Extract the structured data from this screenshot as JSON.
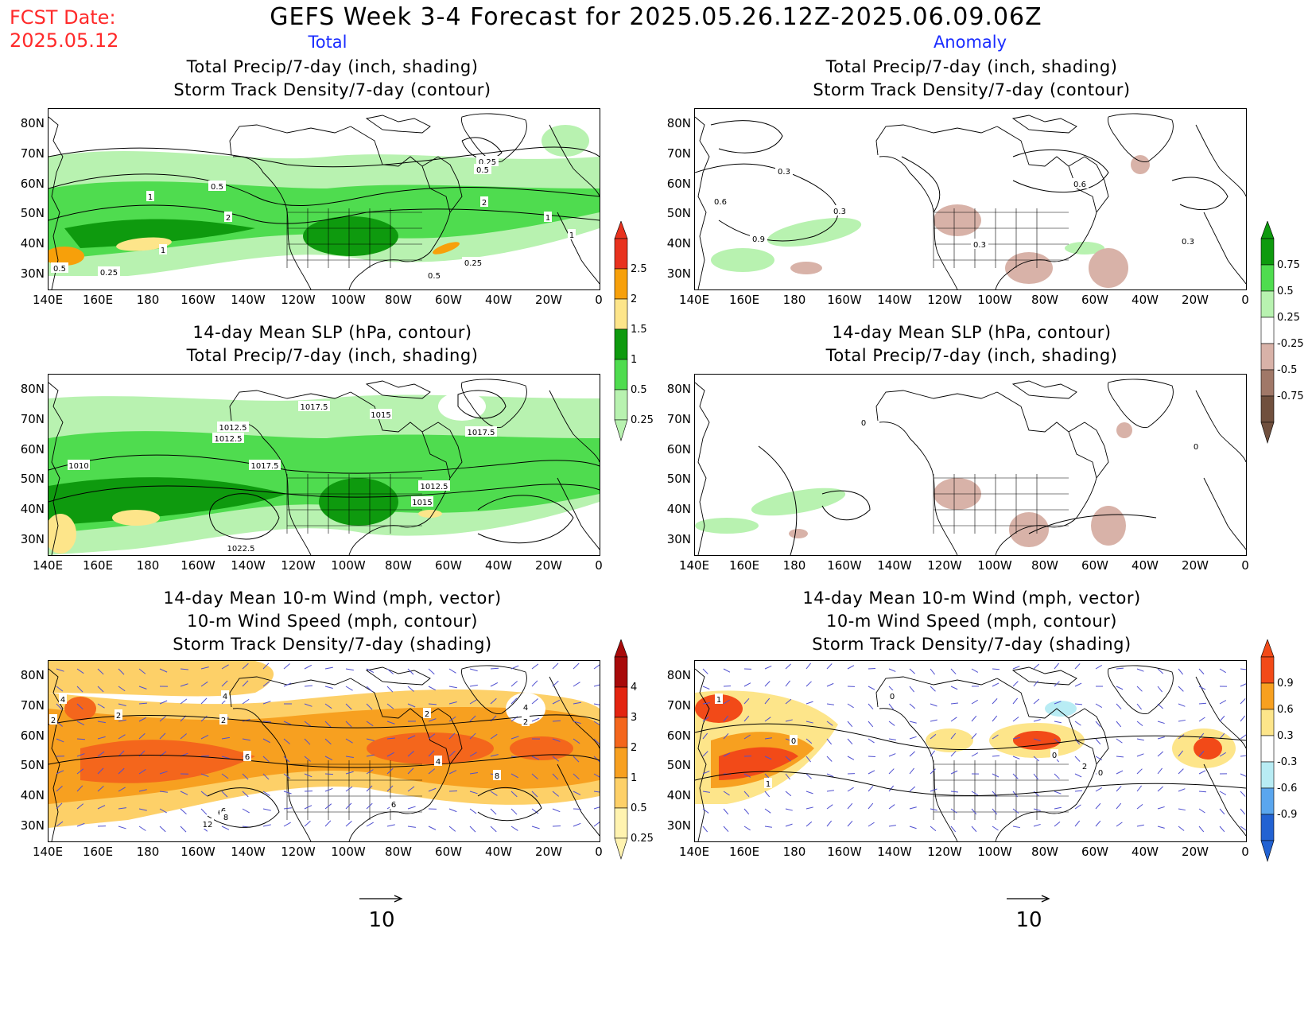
{
  "header": {
    "fcst_label": "FCST Date:",
    "fcst_date": "2025.05.12",
    "title": "GEFS Week 3-4 Forecast for 2025.05.26.12Z-2025.06.09.06Z",
    "col_total": "Total",
    "col_anomaly": "Anomaly"
  },
  "panels": [
    {
      "id": "p1",
      "title": [
        "Total Precip/7-day (inch, shading)",
        "Storm Track Density/7-day (contour)"
      ]
    },
    {
      "id": "p2",
      "title": [
        "Total Precip/7-day (inch, shading)",
        "Storm Track Density/7-day (contour)"
      ]
    },
    {
      "id": "p3",
      "title": [
        "14-day Mean SLP (hPa, contour)",
        "Total Precip/7-day (inch, shading)"
      ]
    },
    {
      "id": "p4",
      "title": [
        "14-day Mean SLP (hPa, contour)",
        "Total Precip/7-day (inch, shading)"
      ]
    },
    {
      "id": "p5",
      "title": [
        "14-day Mean 10-m Wind (mph, vector)",
        "10-m Wind Speed (mph, contour)",
        "Storm Track Density/7-day (shading)"
      ]
    },
    {
      "id": "p6",
      "title": [
        "14-day Mean 10-m Wind (mph, vector)",
        "10-m Wind Speed (mph, contour)",
        "Storm Track Density/7-day (shading)"
      ]
    }
  ],
  "axes": {
    "lat_labels": [
      "80N",
      "70N",
      "60N",
      "50N",
      "40N",
      "30N"
    ],
    "lon_labels": [
      "140E",
      "160E",
      "180",
      "160W",
      "140W",
      "120W",
      "100W",
      "80W",
      "60W",
      "40W",
      "20W",
      "0"
    ]
  },
  "colorbars": {
    "precip_total": {
      "labels": [
        "2.5",
        "2",
        "1.5",
        "1",
        "0.5",
        "0.25"
      ],
      "colors": [
        "#e8321e",
        "#f7a00a",
        "#fde58a",
        "#0e9a0e",
        "#4fdc4f",
        "#b8f2b0"
      ]
    },
    "precip_anom": {
      "labels": [
        "0.75",
        "0.5",
        "0.25",
        "-0.25",
        "-0.5",
        "-0.75"
      ],
      "colors": [
        "#0e9a0e",
        "#4fdc4f",
        "#b8f2b0",
        "#ffffff",
        "#d8b2a8",
        "#a07868",
        "#70503e"
      ]
    },
    "storm_total": {
      "labels": [
        "4",
        "3",
        "2",
        "1",
        "0.5",
        "0.25"
      ],
      "colors": [
        "#a80a0a",
        "#e32410",
        "#f4661c",
        "#f7a020",
        "#fdd068",
        "#fff3b0"
      ]
    },
    "storm_anom": {
      "labels": [
        "0.9",
        "0.6",
        "0.3",
        "-0.3",
        "-0.6",
        "-0.9"
      ],
      "colors": [
        "#f24a18",
        "#f7a020",
        "#fde58a",
        "#ffffff",
        "#b8ecf4",
        "#5aa6ee",
        "#2262d2"
      ]
    }
  },
  "contour_labels": {
    "p1": [
      "0.25",
      "0.5",
      "1",
      "0.5",
      "2",
      "1",
      "0.5",
      "0.25",
      "2",
      "1",
      "1",
      "0.25",
      "0.5"
    ],
    "p2": [
      "0.3",
      "0.6",
      "0.3",
      "0.9",
      "0.6",
      "0.3",
      "0.3"
    ],
    "p3": [
      "1012.5",
      "1012.5",
      "1017.5",
      "1015",
      "1017.5",
      "1010",
      "1017.5",
      "1012.5",
      "1015",
      "1022.5"
    ],
    "p4": [
      "0",
      "0"
    ],
    "p5": [
      "4",
      "2",
      "4",
      "2",
      "2",
      "2",
      "6",
      "4",
      "4",
      "2",
      "6",
      "8",
      "6",
      "12",
      "6",
      "8"
    ],
    "p6": [
      "1",
      "0",
      "1",
      "0",
      "0",
      "2",
      "0"
    ]
  },
  "vector_ref": {
    "value_left": "10",
    "value_right": "10"
  }
}
